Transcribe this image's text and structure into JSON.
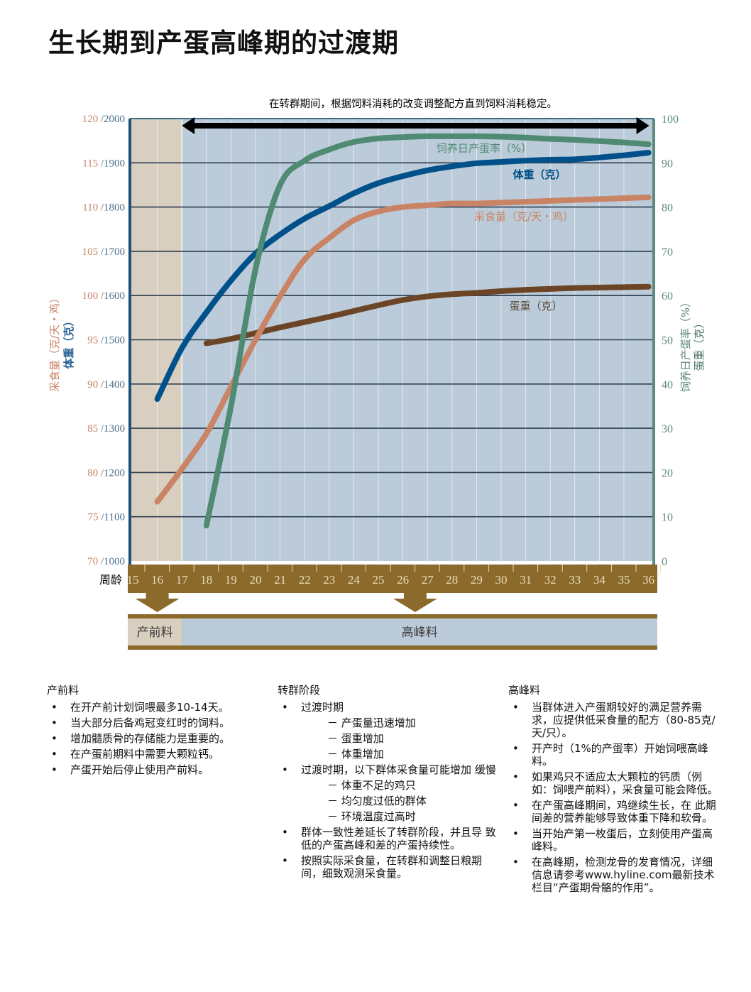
{
  "title": "生长期到产蛋高峰期的过渡期",
  "chart_data": {
    "type": "line",
    "annotation": "在转群期间，根据饲料消耗的改变调整配方直到饲料消耗稳定。",
    "x_label": "周龄",
    "x": [
      15,
      16,
      17,
      18,
      19,
      20,
      21,
      22,
      23,
      24,
      25,
      26,
      27,
      28,
      29,
      30,
      31,
      32,
      33,
      34,
      35,
      36
    ],
    "xlim": [
      15,
      36
    ],
    "left_axis": {
      "title_feed": "采食量（克/天・鸡）",
      "title_weight": "体重（克）",
      "feed_range": [
        70,
        120
      ],
      "weight_range": [
        1000,
        2000
      ],
      "ticks": [
        {
          "feed": "120",
          "weight": "/2000"
        },
        {
          "feed": "115",
          "weight": "/1900"
        },
        {
          "feed": "110",
          "weight": "/1800"
        },
        {
          "feed": "105",
          "weight": "/1700"
        },
        {
          "feed": "100",
          "weight": "/1600"
        },
        {
          "feed": "95",
          "weight": "/1500"
        },
        {
          "feed": "90",
          "weight": "/1400"
        },
        {
          "feed": "85",
          "weight": "/1300"
        },
        {
          "feed": "80",
          "weight": "/1200"
        },
        {
          "feed": "75",
          "weight": "/1100"
        },
        {
          "feed": "70",
          "weight": "/1000"
        }
      ]
    },
    "right_axis": {
      "title_rate": "饲养日产蛋率（%）",
      "title_egg": "蛋重（克）",
      "range": [
        0,
        100
      ],
      "ticks": [
        "100",
        "90",
        "80",
        "70",
        "60",
        "50",
        "40",
        "30",
        "20",
        "10",
        "0"
      ]
    },
    "grid": true,
    "series": [
      {
        "name": "饲养日产蛋率（%）",
        "axis": "right",
        "color": "#4f8a72",
        "x": [
          18,
          19,
          20,
          21,
          22,
          23,
          24,
          25,
          26,
          27,
          28,
          29,
          30,
          31,
          32,
          33,
          34,
          35,
          36
        ],
        "values": [
          8,
          35,
          66,
          85,
          90.5,
          93,
          94.7,
          95.5,
          95.8,
          96,
          96,
          96,
          95.9,
          95.7,
          95.4,
          95.2,
          94.9,
          94.6,
          94.2
        ]
      },
      {
        "name": "体重（克）",
        "axis": "weight",
        "color": "#00508a",
        "x": [
          16,
          17,
          18,
          19,
          20,
          21,
          22,
          23,
          24,
          25,
          26,
          27,
          28,
          29,
          30,
          31,
          32,
          33,
          34,
          35,
          36
        ],
        "values": [
          1366,
          1481,
          1562,
          1634,
          1695,
          1738,
          1774,
          1802,
          1831,
          1854,
          1870,
          1883,
          1892,
          1899,
          1902,
          1905,
          1907,
          1908,
          1912,
          1917,
          1923
        ]
      },
      {
        "name": "采食量（克/天・鸡）",
        "axis": "feed",
        "color": "#c98466",
        "x": [
          16,
          17,
          18,
          19,
          20,
          21,
          22,
          23,
          24,
          25,
          26,
          27,
          28,
          29,
          30,
          31,
          32,
          33,
          34,
          35,
          36
        ],
        "values": [
          76.7,
          80.4,
          84.4,
          89.7,
          95,
          99.9,
          104.1,
          106.5,
          108.5,
          109.5,
          110,
          110.2,
          110.4,
          110.4,
          110.5,
          110.6,
          110.7,
          110.8,
          110.9,
          111,
          111.1
        ]
      },
      {
        "name": "蛋重（克）",
        "axis": "right",
        "color": "#6b4526",
        "x": [
          18,
          19,
          20,
          21,
          22,
          23,
          24,
          25,
          26,
          27,
          28,
          29,
          30,
          31,
          32,
          33,
          34,
          35,
          36
        ],
        "values": [
          49.2,
          50.2,
          51.5,
          52.8,
          54,
          55.2,
          56.5,
          57.8,
          59,
          59.8,
          60.3,
          60.6,
          61,
          61.3,
          61.5,
          61.7,
          61.8,
          61.9,
          62
        ]
      }
    ],
    "prelay_region": [
      15,
      17
    ],
    "transfer_arrow": [
      17,
      36
    ],
    "feed_arrows": [
      16,
      26.5
    ],
    "feed_phases": [
      {
        "label": "产前料",
        "from": 15,
        "to": 17
      },
      {
        "label": "高峰料",
        "from": 17,
        "to": 36
      }
    ]
  },
  "colors": {
    "plot_bg": "#bccbd9",
    "prelay_bg": "#d9cfc0",
    "band": "#8b6a2c",
    "band_text": "#ecdcb4",
    "grid": "#2d3e50",
    "feed_axis": "#c98466",
    "weight_axis": "#1e4f7a",
    "right_axis": "#5d8a7c"
  },
  "columns": [
    {
      "heading": "产前料",
      "items": [
        {
          "t": "b",
          "text": "在开产前计划饲喂最多10-14天。"
        },
        {
          "t": "b",
          "text": "当大部分后备鸡冠变红时的饲料。"
        },
        {
          "t": "b",
          "text": "增加髓质骨的存储能力是重要的。"
        },
        {
          "t": "b",
          "text": "在产蛋前期料中需要大颗粒钙。"
        },
        {
          "t": "b",
          "text": "产蛋开始后停止使用产前料。"
        }
      ]
    },
    {
      "heading": "转群阶段",
      "items": [
        {
          "t": "b",
          "text": "过渡时期"
        },
        {
          "t": "s",
          "text": "－ 产蛋量迅速增加"
        },
        {
          "t": "s",
          "text": "－ 蛋重增加"
        },
        {
          "t": "s",
          "text": "－ 体重增加"
        },
        {
          "t": "b",
          "text": "过渡时期，以下群体采食量可能增加 缓慢"
        },
        {
          "t": "s",
          "text": "－ 体重不足的鸡只"
        },
        {
          "t": "s",
          "text": "－ 均匀度过低的群体"
        },
        {
          "t": "s",
          "text": "－ 环境温度过高时"
        },
        {
          "t": "b",
          "text": "群体一致性差延长了转群阶段，并且导 致低的产蛋高峰和差的产蛋持续性。"
        },
        {
          "t": "b",
          "text": "按照实际采食量，在转群和调整日粮期 间，细致观测采食量。"
        }
      ]
    },
    {
      "heading": "高峰料",
      "items": [
        {
          "t": "b",
          "text": "当群体进入产蛋期较好的满足营养需求，应提供低采食量的配方（80-85克/天/只）。"
        },
        {
          "t": "b",
          "text": "开产时（1%的产蛋率）开始饲喂高峰料。"
        },
        {
          "t": "b",
          "text": "如果鸡只不适应太大颗粒的钙质（例如：饲喂产前料），采食量可能会降低。"
        },
        {
          "t": "b",
          "text": "在产蛋高峰期间，鸡继续生长，在 此期间差的营养能够导致体重下降和软骨。"
        },
        {
          "t": "b",
          "text": "当开始产第一枚蛋后，立刻使用产蛋高峰料。"
        },
        {
          "t": "b",
          "text": "在高峰期，检测龙骨的发育情况，详细信息请参考www.hyline.com最新技术栏目“产蛋期骨骼的作用”。"
        }
      ]
    }
  ]
}
